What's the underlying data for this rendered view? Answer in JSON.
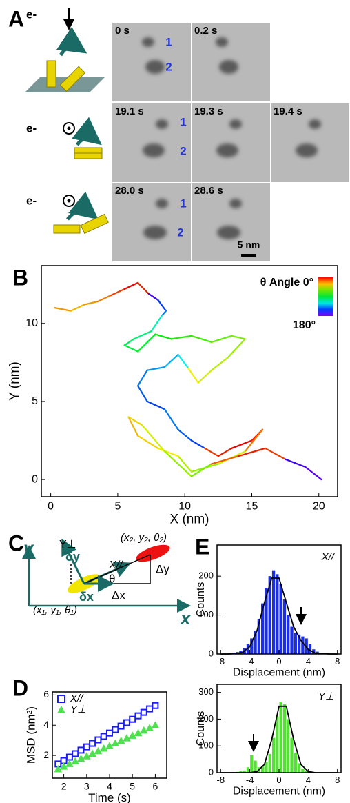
{
  "panel_a": {
    "label": "A",
    "beam_labels": [
      "e-",
      "e-",
      "e-"
    ],
    "frame_times": [
      [
        "0 s",
        "0.2 s"
      ],
      [
        "19.1 s",
        "19.3 s",
        "19.4 s"
      ],
      [
        "28.0 s",
        "28.6 s"
      ]
    ],
    "spot_labels": [
      [
        "1",
        "2"
      ],
      [
        "1",
        "2"
      ],
      [
        "1",
        "2"
      ]
    ],
    "scale_bar": "5 nm"
  },
  "panel_c": {
    "label": "C",
    "y_axis": "y",
    "x_axis": "x",
    "perp": "Y⊥",
    "dy": "δy",
    "par": "X//",
    "end": "(x₂, y₂, θ₂)",
    "Dy": "Δy",
    "theta": "θ",
    "dx": "δx",
    "Dx": "Δx",
    "start": "(x₁, y₁, θ₁)"
  },
  "chart_data": [
    {
      "type": "line",
      "panel_label": "B",
      "xlabel": "X (nm)",
      "ylabel": "Y (nm)",
      "colorbar_title": "θ Angle 0°",
      "colorbar_end": "180°",
      "xlim": [
        -0.7,
        21.4
      ],
      "ylim": [
        -1.1,
        13.7
      ],
      "xticks": [
        0,
        5,
        10,
        15,
        20
      ],
      "yticks": [
        0,
        5,
        10
      ],
      "x": [
        0.3,
        1.5,
        2.5,
        3.5,
        4.5,
        5.5,
        6.5,
        7.3,
        8.0,
        8.6,
        8.3,
        7.5,
        6.2,
        5.5,
        6.5,
        7.8,
        9,
        10.5,
        12,
        13.5,
        14.5,
        13.2,
        12.0,
        11.0,
        10.2,
        9.5,
        8.5,
        7.2,
        6.5,
        7.2,
        8.5,
        9.5,
        10.5,
        11.5,
        12.5,
        13.5,
        15.0,
        15.8,
        14.5,
        12.5,
        10.5,
        9.5,
        8.0,
        6.5,
        5.8,
        6.8,
        8.5,
        10.5,
        12,
        14,
        16,
        17.5,
        19,
        20.2
      ],
      "y": [
        11.0,
        10.8,
        11.2,
        11.4,
        11.8,
        12.2,
        12.6,
        11.9,
        11.5,
        10.8,
        10.5,
        9.5,
        9.0,
        8.6,
        8.2,
        9.3,
        9.0,
        9.2,
        8.8,
        9.2,
        9.0,
        7.8,
        7.0,
        6.2,
        7.2,
        8.0,
        7.2,
        7.0,
        6.0,
        5.0,
        4.5,
        3.2,
        2.5,
        2.0,
        1.5,
        2.0,
        2.5,
        3.2,
        1.8,
        1.0,
        0.5,
        1.5,
        2.0,
        2.8,
        4.0,
        3.5,
        1.8,
        0.2,
        1.0,
        1.5,
        2.0,
        1.3,
        0.8,
        0.0
      ],
      "angle": [
        30,
        25,
        30,
        25,
        20,
        10,
        0,
        5,
        170,
        150,
        140,
        110,
        100,
        95,
        90,
        85,
        80,
        75,
        70,
        65,
        60,
        55,
        50,
        45,
        40,
        120,
        130,
        135,
        140,
        145,
        150,
        140,
        145,
        150,
        10,
        5,
        0,
        5,
        20,
        45,
        55,
        50,
        40,
        35,
        30,
        35,
        45,
        55,
        60,
        15,
        5,
        10,
        170,
        175
      ]
    },
    {
      "type": "scatter",
      "panel_label": "D",
      "xlabel": "Time (s)",
      "ylabel": "MSD (nm²)",
      "xlim": [
        1.5,
        6.5
      ],
      "ylim": [
        0.5,
        6.2
      ],
      "xticks": [
        2,
        3,
        4,
        5,
        6
      ],
      "yticks": [
        2,
        4,
        6
      ],
      "x": [
        1.75,
        2,
        2.25,
        2.5,
        2.75,
        3,
        3.25,
        3.5,
        3.75,
        4,
        4.25,
        4.5,
        4.75,
        5,
        5.25,
        5.5,
        5.75,
        6
      ],
      "series": [
        {
          "name": "X//",
          "color": "#1a1aff",
          "values": [
            1.44,
            1.66,
            1.89,
            2.12,
            2.35,
            2.57,
            2.8,
            3.03,
            3.26,
            3.48,
            3.71,
            3.94,
            4.17,
            4.39,
            4.62,
            4.85,
            5.08,
            5.3
          ]
        },
        {
          "name": "Y⊥",
          "color": "#4fe04f",
          "values": [
            1.1,
            1.27,
            1.44,
            1.61,
            1.78,
            1.95,
            2.12,
            2.29,
            2.46,
            2.63,
            2.8,
            2.97,
            3.14,
            3.31,
            3.48,
            3.65,
            3.82,
            3.99
          ]
        }
      ]
    },
    {
      "type": "histogram",
      "panel_label": "E",
      "annotation": "X//",
      "xlabel": "Displacement (nm)",
      "ylabel": "Counts",
      "color": "#1c2fe0",
      "xlim": [
        -8.5,
        8.5
      ],
      "ylim": [
        0,
        280
      ],
      "xticks": [
        -8,
        -4,
        0,
        4,
        8
      ],
      "yticks": [
        0,
        100,
        200
      ],
      "bins": [
        -8,
        -7.5,
        -7,
        -6.5,
        -6,
        -5.5,
        -5,
        -4.5,
        -4,
        -3.5,
        -3,
        -2.5,
        -2,
        -1.5,
        -1,
        -0.5,
        0,
        0.5,
        1,
        1.5,
        2,
        2.5,
        3,
        3.5,
        4,
        4.5,
        5,
        5.5,
        6,
        6.5,
        7,
        7.5,
        8
      ],
      "counts": [
        0,
        0,
        2,
        3,
        5,
        8,
        15,
        25,
        40,
        60,
        90,
        130,
        170,
        200,
        215,
        205,
        180,
        140,
        100,
        70,
        55,
        50,
        45,
        40,
        25,
        12,
        6,
        3,
        2,
        1,
        0,
        0
      ],
      "fit_x": [
        -8,
        -7,
        -6,
        -5,
        -4,
        -3,
        -2,
        -1,
        0,
        1,
        2,
        3,
        4,
        5,
        6,
        7,
        8
      ],
      "fit_values": [
        0,
        0,
        1,
        4,
        19,
        61,
        132,
        195,
        195,
        132,
        70,
        35,
        12,
        2,
        1,
        0,
        0
      ]
    },
    {
      "type": "histogram",
      "annotation": "Y⊥",
      "xlabel": "Displacement (nm)",
      "ylabel": "Counts",
      "color": "#55e035",
      "xlim": [
        -8.5,
        8.5
      ],
      "ylim": [
        0,
        330
      ],
      "xticks": [
        -8,
        -4,
        0,
        4,
        8
      ],
      "yticks": [
        0,
        100,
        200,
        300
      ],
      "bins": [
        -8,
        -7.5,
        -7,
        -6.5,
        -6,
        -5.5,
        -5,
        -4.5,
        -4,
        -3.5,
        -3,
        -2.5,
        -2,
        -1.5,
        -1,
        -0.5,
        0,
        0.5,
        1,
        1.5,
        2,
        2.5,
        3,
        3.5,
        4,
        4.5,
        5,
        5.5,
        6,
        6.5,
        7,
        7.5,
        8
      ],
      "counts": [
        0,
        0,
        0,
        2,
        3,
        5,
        8,
        20,
        65,
        45,
        20,
        25,
        40,
        70,
        130,
        210,
        265,
        255,
        200,
        130,
        75,
        35,
        15,
        8,
        4,
        2,
        1,
        0,
        0,
        0,
        0,
        0
      ],
      "fit_x": [
        -8,
        -7,
        -6,
        -5,
        -4,
        -3,
        -2,
        -1,
        0,
        1,
        2,
        3,
        4,
        5,
        6,
        7,
        8
      ],
      "fit_values": [
        0,
        0,
        0,
        0,
        0,
        4,
        31,
        124,
        248,
        248,
        124,
        31,
        4,
        0,
        0,
        0,
        0
      ]
    }
  ]
}
